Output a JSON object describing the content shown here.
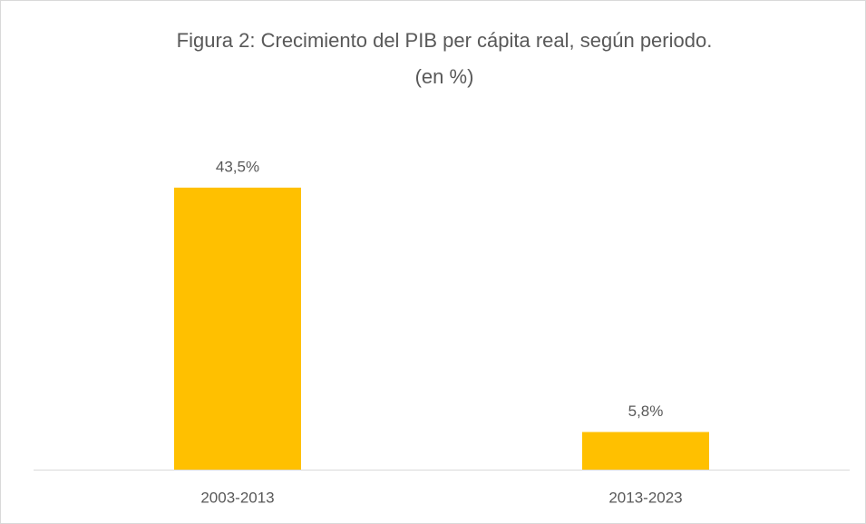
{
  "chart_data": {
    "type": "bar",
    "title": "Figura 2: Crecimiento del PIB per cápita real, según periodo.",
    "subtitle": "(en %)",
    "categories": [
      "2003-2013",
      "2013-2023"
    ],
    "values": [
      43.5,
      5.8
    ],
    "value_labels": [
      "43,5%",
      "5,8%"
    ],
    "color": "#ffc000"
  }
}
